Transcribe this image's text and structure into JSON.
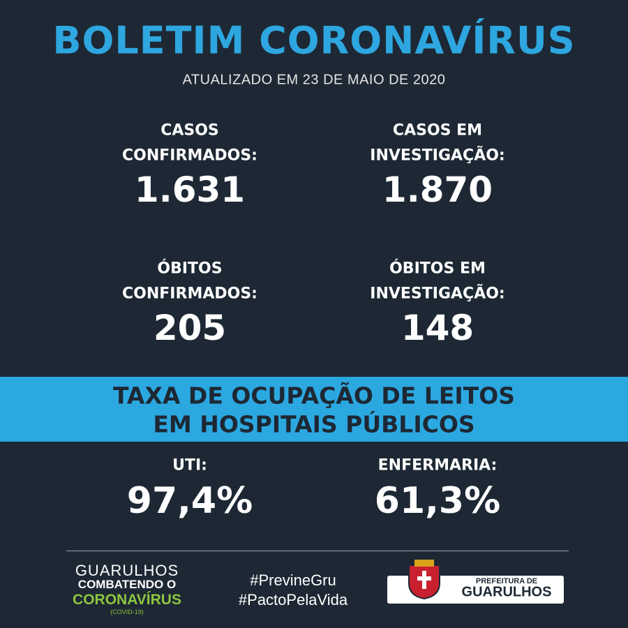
{
  "header": {
    "title": "BOLETIM CORONAVÍRUS",
    "subtitle": "ATUALIZADO EM 23 DE MAIO DE 2020"
  },
  "stats": [
    {
      "label": [
        "CASOS",
        "CONFIRMADOS:"
      ],
      "value": "1.631"
    },
    {
      "label": [
        "CASOS EM",
        "INVESTIGAÇÃO:"
      ],
      "value": "1.870"
    },
    {
      "label": [
        "ÓBITOS",
        "CONFIRMADOS:"
      ],
      "value": "205"
    },
    {
      "label": [
        "ÓBITOS EM",
        "INVESTIGAÇÃO:"
      ],
      "value": "148"
    }
  ],
  "banner": {
    "lines": [
      "TAXA DE OCUPAÇÃO DE LEITOS",
      "EM HOSPITAIS PÚBLICOS"
    ]
  },
  "occupancy": [
    {
      "label": "UTI:",
      "value": "97,4%"
    },
    {
      "label": "ENFERMARIA:",
      "value": "61,3%"
    }
  ],
  "footer": {
    "campaign": [
      "GUARULHOS",
      "COMBATENDO O",
      "CORONAVÍRUS",
      "(COVID-19)"
    ],
    "hashtags": [
      "#PrevineGru",
      "#PactoPelaVida"
    ],
    "logo": [
      "PREFEITURA DE",
      "GUARULHOS"
    ]
  }
}
